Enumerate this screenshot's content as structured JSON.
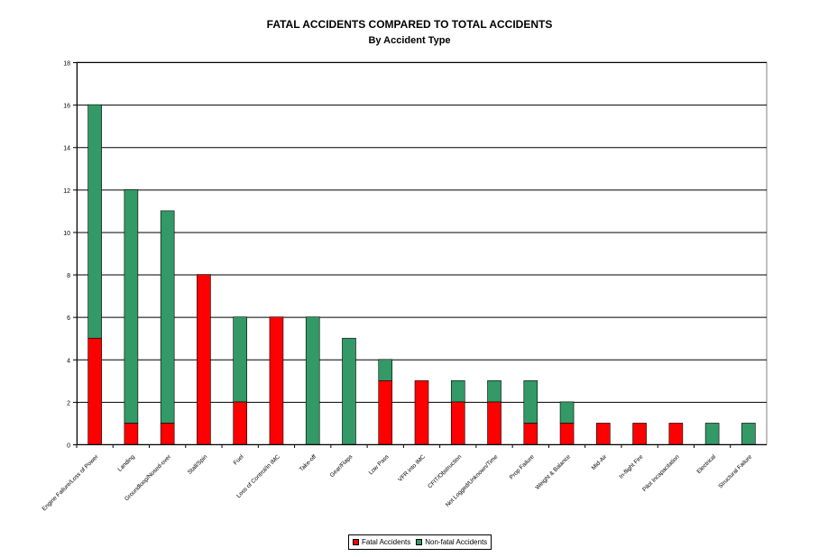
{
  "chart_data": {
    "type": "bar",
    "stacked": true,
    "title": "FATAL ACCIDENTS COMPARED TO TOTAL ACCIDENTS",
    "subtitle": "By Accident Type",
    "xlabel": "",
    "ylabel": "",
    "ylim": [
      0,
      18
    ],
    "yticks": [
      0,
      2,
      4,
      6,
      8,
      10,
      12,
      14,
      16,
      18
    ],
    "grid": true,
    "legend_position": "bottom",
    "categories": [
      "Engine Failure/Loss of Power",
      "Landing",
      "Groundloop/Nosed-over",
      "Stall/Spin",
      "Fuel",
      "Loss of Control/In IMC",
      "Take-off",
      "Gear/Flaps",
      "Low Pass",
      "VFR into IMC",
      "CFIT/Obstruction",
      "Not Logged/Unknown/Time",
      "Prop Failure",
      "Weight & Balance",
      "Mid-Air",
      "In-flight Fire",
      "Pilot Incapacitation",
      "Electrical",
      "Structural Failure"
    ],
    "series": [
      {
        "name": "Fatal Accidents",
        "color": "#ff0000",
        "values": [
          5,
          1,
          1,
          8,
          2,
          6,
          0,
          0,
          3,
          3,
          2,
          2,
          1,
          1,
          1,
          1,
          1,
          0,
          0
        ]
      },
      {
        "name": "Non-fatal Accidents",
        "color": "#339966",
        "values": [
          11,
          11,
          10,
          0,
          4,
          0,
          6,
          5,
          1,
          0,
          1,
          1,
          2,
          1,
          0,
          0,
          0,
          1,
          1
        ]
      }
    ]
  }
}
